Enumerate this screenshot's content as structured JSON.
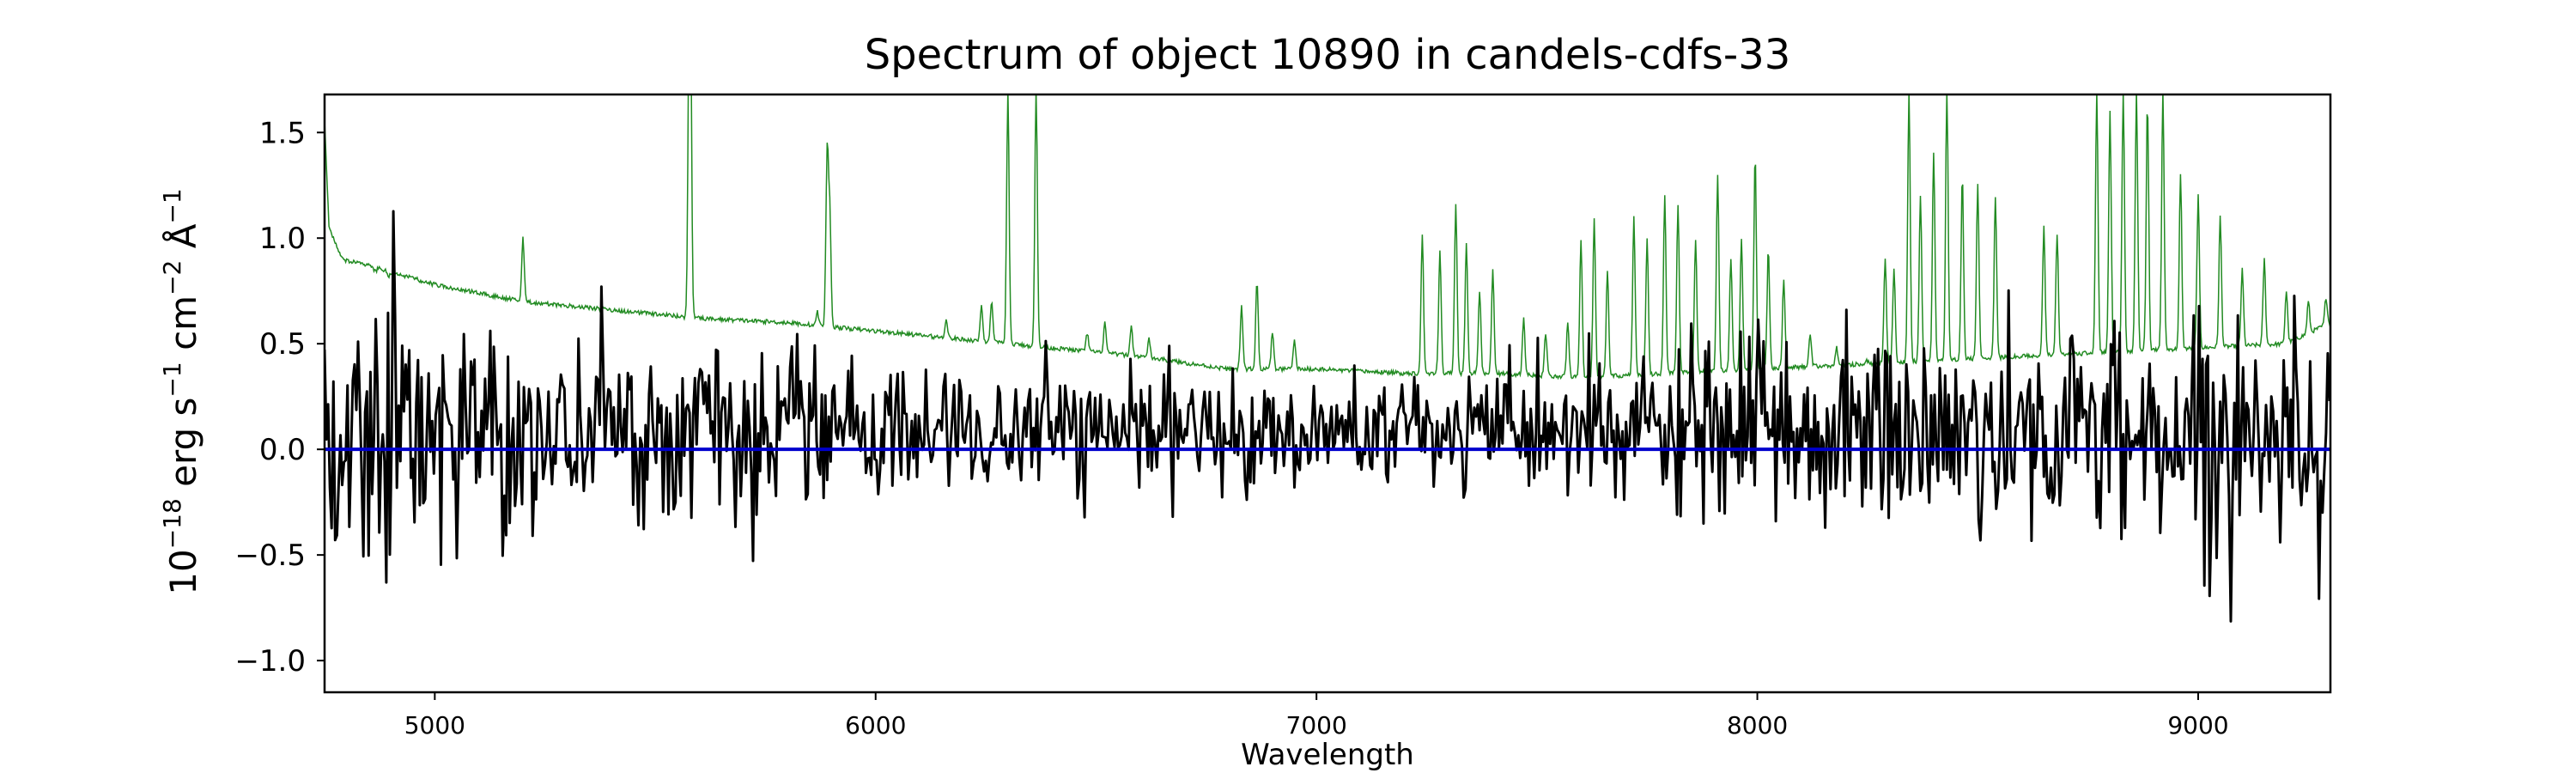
{
  "chart_data": {
    "type": "line",
    "title": "Spectrum of object 10890 in candels-cdfs-33",
    "xlabel": "Wavelength",
    "ylabel_parts": [
      "10",
      "−18",
      " erg s",
      "−1",
      " cm",
      "−2",
      " Å",
      "−1"
    ],
    "xlim": [
      4750,
      9300
    ],
    "ylim": [
      -1.15,
      1.68
    ],
    "xticks": [
      5000,
      6000,
      7000,
      8000,
      9000
    ],
    "xtick_labels": [
      "5000",
      "6000",
      "7000",
      "8000",
      "9000"
    ],
    "yticks": [
      -1.0,
      -0.5,
      0.0,
      0.5,
      1.0,
      1.5
    ],
    "ytick_labels": [
      "−1.0",
      "−0.5",
      "0.0",
      "0.5",
      "1.0",
      "1.5"
    ],
    "grid": false,
    "series": [
      {
        "color": "#228b22",
        "continuum": {
          "x": [
            4750,
            4760,
            4790,
            4850,
            5000,
            5200,
            5400,
            5600,
            5800,
            6000,
            6200,
            6400,
            6600,
            6800,
            7000,
            7200,
            7400,
            7600,
            7800,
            8000,
            8200,
            8400,
            8600,
            8800,
            9000,
            9200,
            9300
          ],
          "y": [
            1.55,
            1.05,
            0.9,
            0.87,
            0.78,
            0.7,
            0.66,
            0.62,
            0.6,
            0.56,
            0.52,
            0.48,
            0.44,
            0.38,
            0.38,
            0.36,
            0.36,
            0.34,
            0.36,
            0.38,
            0.4,
            0.42,
            0.44,
            0.46,
            0.48,
            0.5,
            0.6
          ]
        },
        "peaks": [
          [
            4865,
            0.84
          ],
          [
            4895,
            0.82
          ],
          [
            5200,
            1.0
          ],
          [
            5577,
            1.7
          ],
          [
            5580,
            1.7
          ],
          [
            5868,
            0.65
          ],
          [
            5890,
            1.4
          ],
          [
            5896,
            1.1
          ],
          [
            6160,
            0.62
          ],
          [
            6240,
            0.68
          ],
          [
            6263,
            0.7
          ],
          [
            6300,
            1.7
          ],
          [
            6364,
            1.7
          ],
          [
            6480,
            0.55
          ],
          [
            6520,
            0.6
          ],
          [
            6580,
            0.58
          ],
          [
            6620,
            0.52
          ],
          [
            6830,
            0.68
          ],
          [
            6865,
            0.8
          ],
          [
            6900,
            0.55
          ],
          [
            6950,
            0.52
          ],
          [
            7240,
            1.02
          ],
          [
            7280,
            0.95
          ],
          [
            7316,
            1.17
          ],
          [
            7340,
            0.98
          ],
          [
            7370,
            0.75
          ],
          [
            7400,
            0.85
          ],
          [
            7470,
            0.62
          ],
          [
            7520,
            0.55
          ],
          [
            7570,
            0.6
          ],
          [
            7600,
            1.0
          ],
          [
            7630,
            1.1
          ],
          [
            7660,
            0.85
          ],
          [
            7720,
            1.1
          ],
          [
            7750,
            1.0
          ],
          [
            7790,
            1.2
          ],
          [
            7820,
            1.15
          ],
          [
            7860,
            1.0
          ],
          [
            7910,
            1.3
          ],
          [
            7940,
            0.9
          ],
          [
            7964,
            1.0
          ],
          [
            7995,
            1.4
          ],
          [
            8025,
            0.95
          ],
          [
            8060,
            0.8
          ],
          [
            8120,
            0.55
          ],
          [
            8180,
            0.48
          ],
          [
            8250,
            0.42
          ],
          [
            8290,
            0.9
          ],
          [
            8310,
            0.85
          ],
          [
            8344,
            1.7
          ],
          [
            8370,
            1.2
          ],
          [
            8400,
            1.4
          ],
          [
            8430,
            1.7
          ],
          [
            8465,
            1.3
          ],
          [
            8500,
            1.25
          ],
          [
            8540,
            1.2
          ],
          [
            8650,
            1.05
          ],
          [
            8680,
            1.02
          ],
          [
            8770,
            1.7
          ],
          [
            8800,
            1.6
          ],
          [
            8830,
            1.7
          ],
          [
            8860,
            1.7
          ],
          [
            8885,
            1.65
          ],
          [
            8920,
            1.7
          ],
          [
            8960,
            1.3
          ],
          [
            9000,
            1.2
          ],
          [
            9050,
            1.1
          ],
          [
            9100,
            0.85
          ],
          [
            9150,
            0.9
          ],
          [
            9200,
            0.75
          ],
          [
            9250,
            0.7
          ],
          [
            9290,
            0.72
          ]
        ]
      },
      {
        "color": "#000000",
        "noise_profile": {
          "x": [
            4750,
            5000,
            5500,
            6000,
            6500,
            7000,
            7500,
            8000,
            8500,
            9000,
            9300
          ],
          "sigma": [
            0.3,
            0.26,
            0.2,
            0.16,
            0.14,
            0.12,
            0.16,
            0.22,
            0.24,
            0.26,
            0.28
          ]
        }
      },
      {
        "color": "#0000cd",
        "x": [
          4750,
          9300
        ],
        "y": [
          0.0,
          0.0
        ]
      }
    ]
  }
}
